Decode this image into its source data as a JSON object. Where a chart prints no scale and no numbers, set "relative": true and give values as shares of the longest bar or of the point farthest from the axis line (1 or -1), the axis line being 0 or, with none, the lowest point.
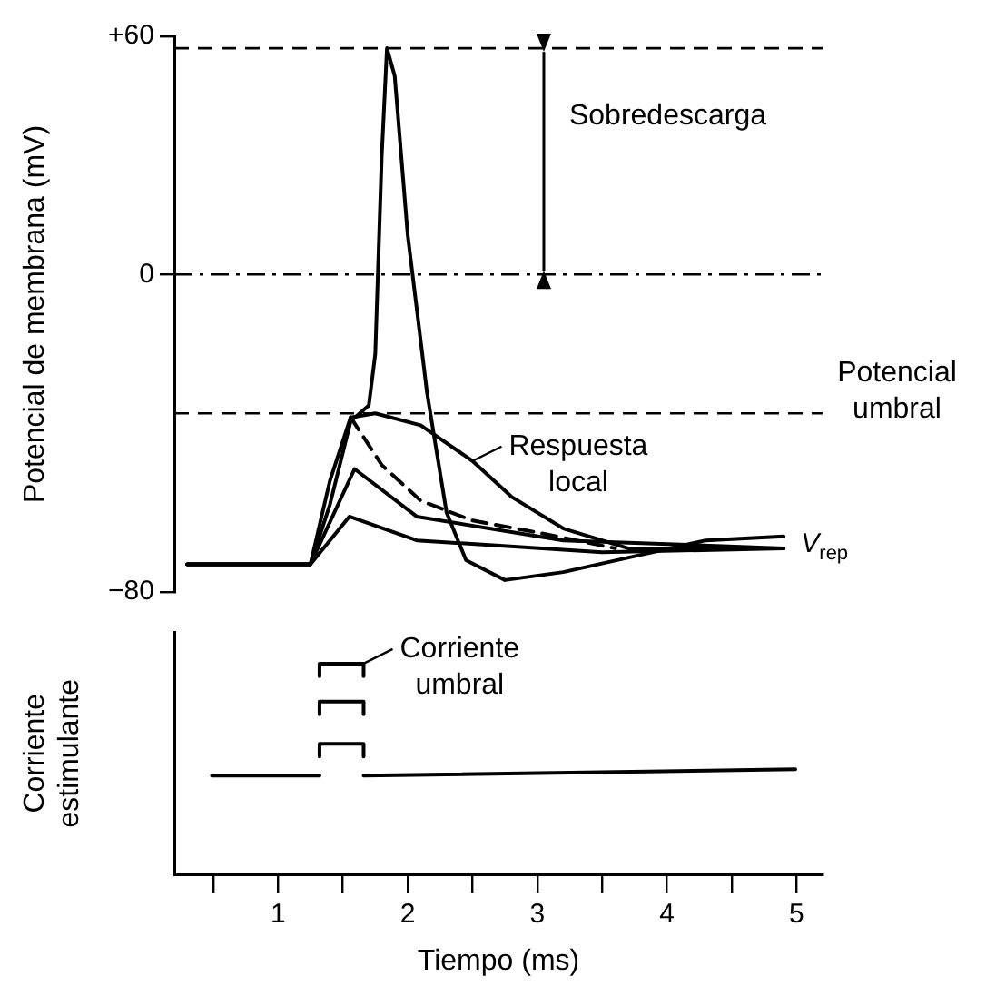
{
  "chart_data": [
    {
      "type": "line",
      "ylabel": "Potencial de membrana (mV)",
      "xlim": [
        0.2,
        5.2
      ],
      "ylim": [
        -80,
        60
      ],
      "yticks": [
        {
          "value": 60,
          "label": "+60"
        },
        0,
        {
          "value": -80,
          "label": "−80"
        }
      ],
      "tick_labels": "y",
      "grid": false,
      "legend": false,
      "marker": "none",
      "series": [
        {
          "color": "#000000",
          "x": [
            0.3,
            1.25,
            1.4,
            1.56,
            1.7,
            1.75,
            1.8,
            1.84,
            1.9,
            2.0,
            2.15,
            2.3,
            2.45,
            2.75,
            3.2,
            3.75,
            4.3,
            4.9
          ],
          "values": [
            -73,
            -73,
            -58,
            -37,
            -33,
            -20,
            30,
            57,
            50,
            10,
            -30,
            -60,
            -72,
            -77,
            -75,
            -71,
            -67,
            -66
          ]
        },
        {
          "color": "#000000",
          "x": [
            0.3,
            1.25,
            1.4,
            1.56,
            1.75,
            2.1,
            2.5,
            2.8,
            3.2,
            3.7,
            4.9
          ],
          "values": [
            -73,
            -73,
            -52,
            -36,
            -35,
            -38,
            -47,
            -56,
            -64,
            -69,
            -69
          ]
        },
        {
          "color": "#000000",
          "line_style": "dashed",
          "x": [
            1.56,
            1.8,
            2.1,
            2.5,
            3.0,
            3.6
          ],
          "values": [
            -36,
            -48,
            -57,
            -62,
            -65,
            -69
          ]
        },
        {
          "color": "#000000",
          "x": [
            0.3,
            1.25,
            1.59,
            2.07,
            3.2,
            4.9
          ],
          "values": [
            -73,
            -73,
            -49,
            -61,
            -67,
            -69
          ]
        },
        {
          "color": "#000000",
          "x": [
            0.3,
            1.25,
            1.55,
            2.07,
            3.5,
            4.9
          ],
          "values": [
            -73,
            -73,
            -61,
            -67,
            -70,
            -69
          ]
        }
      ],
      "ref_lines": [
        {
          "axis": "y",
          "value": 57,
          "line_style": "dashed"
        },
        {
          "axis": "y",
          "value": 0,
          "line_style": "dashdot"
        },
        {
          "axis": "y",
          "value": -35,
          "line_style": "dashed",
          "label": "Potencial umbral"
        }
      ],
      "annotations": [
        "Sobredescarga",
        {
          "text": "Respuesta local",
          "x": 2.5,
          "y": -47
        },
        {
          "text": "V$_{rep}$",
          "x": 4.95,
          "y": -68
        }
      ]
    },
    {
      "type": "line",
      "relative": true,
      "xlabel": "Tiempo (ms)",
      "ylabel": "Corriente estimulante",
      "xlim": [
        0.2,
        5.2
      ],
      "xticks": [
        {
          "value": 0.5,
          "label": null
        },
        1,
        {
          "value": 1.5,
          "label": null
        },
        2,
        {
          "value": 2.5,
          "label": null
        },
        3,
        {
          "value": 3.5,
          "label": null
        },
        4,
        {
          "value": 4.5,
          "label": null
        },
        5
      ],
      "tick_labels": "x",
      "grid": false,
      "legend": false,
      "marker": "none",
      "series": [
        {
          "color": "#000000",
          "x": [
            0.49,
            1.32,
            1.49,
            1.66,
            4.99
          ],
          "values": [
            0.47,
            0.47,
            null,
            0.47,
            0.5
          ]
        },
        {
          "color": "#000000",
          "x": [
            1.32,
            1.32,
            1.66,
            1.66
          ],
          "values": [
            0.56,
            0.62,
            0.62,
            0.56
          ]
        },
        {
          "color": "#000000",
          "x": [
            1.32,
            1.32,
            1.66,
            1.66
          ],
          "values": [
            0.76,
            0.82,
            0.82,
            0.76
          ]
        },
        {
          "color": "#000000",
          "x": [
            1.32,
            1.32,
            1.66,
            1.66
          ],
          "values": [
            0.94,
            1,
            1,
            0.94
          ]
        }
      ],
      "annotations": [
        {
          "text": "Corriente umbral",
          "x": 1.66,
          "y": 1
        }
      ]
    }
  ]
}
